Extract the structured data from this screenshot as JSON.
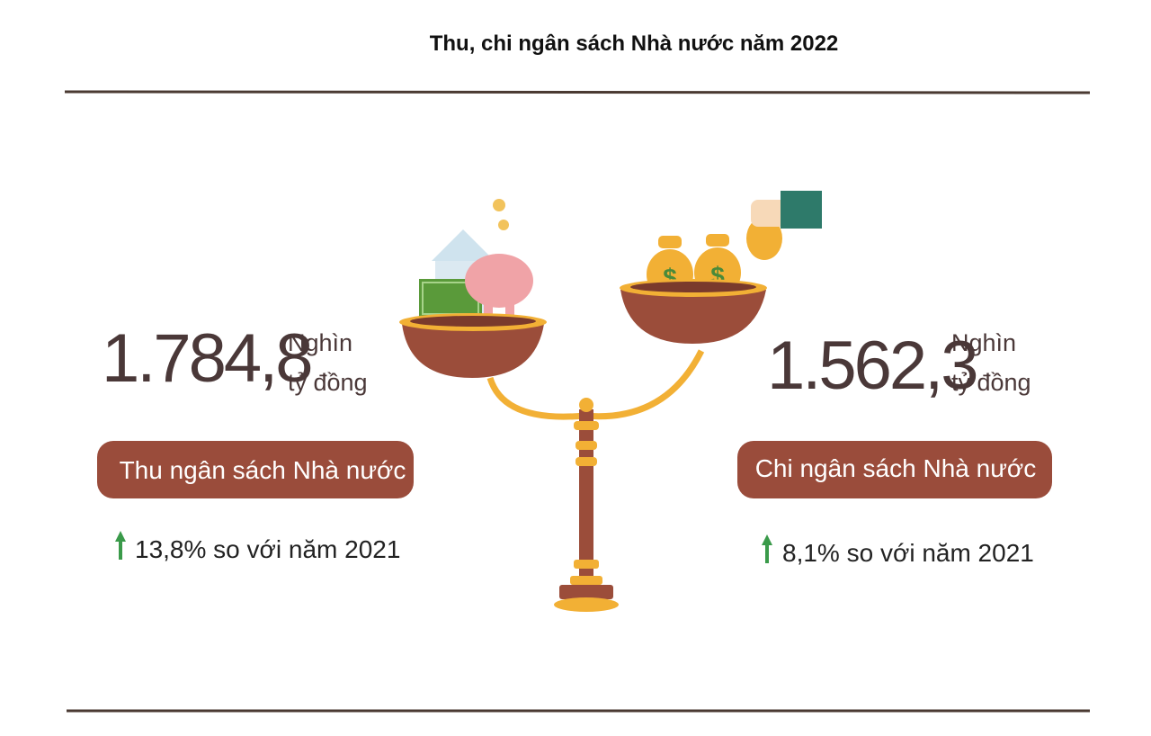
{
  "title": "Thu, chi ngân sách Nhà nước năm 2022",
  "left": {
    "value": "1.784,8",
    "unit_line1": "Nghìn",
    "unit_line2": "tỷ đồng",
    "label": "Thu ngân sách Nhà nước",
    "change": "13,8% so với năm 2021"
  },
  "right": {
    "value": "1.562,3",
    "unit_line1": "Nghìn",
    "unit_line2": "tỷ đồng",
    "label": "Chi ngân sách Nhà nước",
    "change": "8,1% so với năm 2021"
  }
}
